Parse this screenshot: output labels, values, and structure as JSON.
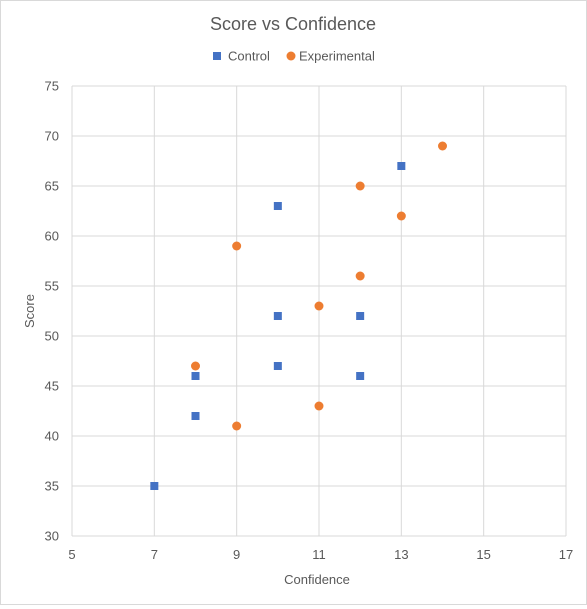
{
  "chart_data": {
    "type": "scatter",
    "title": "Score vs Confidence",
    "xlabel": "Confidence",
    "ylabel": "Score",
    "xlim": [
      5,
      17
    ],
    "ylim": [
      30,
      75
    ],
    "xticks": [
      5,
      7,
      9,
      11,
      13,
      15,
      17
    ],
    "yticks": [
      30,
      35,
      40,
      45,
      50,
      55,
      60,
      65,
      70,
      75
    ],
    "grid": true,
    "legend_position": "top",
    "series": [
      {
        "name": "Control",
        "marker": "square",
        "color": "#4472c4",
        "points": [
          {
            "x": 7,
            "y": 35
          },
          {
            "x": 8,
            "y": 42
          },
          {
            "x": 8,
            "y": 46
          },
          {
            "x": 10,
            "y": 47
          },
          {
            "x": 10,
            "y": 52
          },
          {
            "x": 10,
            "y": 63
          },
          {
            "x": 12,
            "y": 52
          },
          {
            "x": 12,
            "y": 46
          },
          {
            "x": 13,
            "y": 67
          }
        ]
      },
      {
        "name": "Experimental",
        "marker": "circle",
        "color": "#ed7d31",
        "points": [
          {
            "x": 8,
            "y": 47
          },
          {
            "x": 9,
            "y": 41
          },
          {
            "x": 9,
            "y": 59
          },
          {
            "x": 11,
            "y": 53
          },
          {
            "x": 11,
            "y": 43
          },
          {
            "x": 12,
            "y": 65
          },
          {
            "x": 12,
            "y": 56
          },
          {
            "x": 13,
            "y": 62
          },
          {
            "x": 14,
            "y": 69
          }
        ]
      }
    ]
  }
}
